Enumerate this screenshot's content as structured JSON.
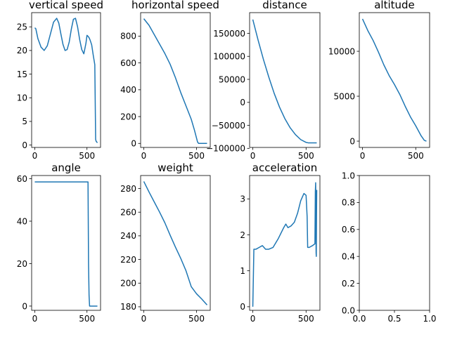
{
  "line_color": "#1f77b4",
  "chart_data": [
    {
      "type": "line",
      "title": "vertical speed",
      "xlim": [
        -30,
        630
      ],
      "ylim": [
        -0.5,
        28
      ],
      "xticks": [
        0,
        500
      ],
      "xtick_labels": [
        "0",
        "500"
      ],
      "yticks": [
        0,
        5,
        10,
        15,
        20,
        25
      ],
      "ytick_labels": [
        "0",
        "5",
        "10",
        "15",
        "20",
        "25"
      ],
      "x": [
        0,
        10,
        30,
        60,
        90,
        120,
        150,
        180,
        210,
        230,
        250,
        270,
        290,
        310,
        330,
        350,
        370,
        390,
        410,
        430,
        450,
        470,
        490,
        500,
        510,
        520,
        530,
        545,
        560,
        575,
        583,
        588,
        595,
        600
      ],
      "y": [
        24.8,
        24.6,
        22.5,
        20.7,
        20.0,
        21.0,
        23.5,
        26.0,
        26.8,
        25.8,
        23.5,
        21.3,
        20.0,
        20.2,
        21.8,
        24.5,
        26.6,
        26.8,
        25.0,
        22.3,
        20.2,
        19.3,
        21.5,
        23.2,
        23.0,
        22.7,
        22.2,
        21.2,
        19.0,
        17.0,
        1.2,
        0.8,
        0.6,
        0.5
      ]
    },
    {
      "type": "line",
      "title": "horizontal speed",
      "xlim": [
        -30,
        630
      ],
      "ylim": [
        -30,
        975
      ],
      "xticks": [
        0,
        500
      ],
      "xtick_labels": [
        "0",
        "500"
      ],
      "yticks": [
        0,
        200,
        400,
        600,
        800
      ],
      "ytick_labels": [
        "0",
        "200",
        "400",
        "600",
        "800"
      ],
      "x": [
        0,
        50,
        100,
        150,
        200,
        250,
        300,
        350,
        400,
        450,
        480,
        500,
        510,
        520,
        540,
        570,
        600
      ],
      "y": [
        930,
        880,
        810,
        740,
        670,
        590,
        490,
        380,
        280,
        180,
        100,
        40,
        10,
        0,
        0,
        0,
        0
      ]
    },
    {
      "type": "line",
      "title": "distance",
      "xlim": [
        -30,
        630
      ],
      "ylim": [
        -98000,
        195000
      ],
      "xticks": [
        0,
        500
      ],
      "xtick_labels": [
        "0",
        "500"
      ],
      "yticks": [
        150000,
        100000,
        50000,
        0,
        -50000,
        -100000
      ],
      "ytick_labels": [
        "150000",
        "100000",
        "50000",
        "0",
        "−50000",
        "−100000"
      ],
      "x": [
        0,
        50,
        100,
        150,
        200,
        250,
        300,
        350,
        400,
        450,
        500,
        520,
        560,
        600
      ],
      "y": [
        180000,
        135000,
        93000,
        55000,
        20000,
        -10000,
        -35000,
        -55000,
        -70000,
        -81000,
        -87000,
        -88000,
        -88000,
        -88000
      ]
    },
    {
      "type": "line",
      "title": "altitude",
      "xlim": [
        -30,
        630
      ],
      "ylim": [
        -700,
        14300
      ],
      "xticks": [
        0,
        500
      ],
      "xtick_labels": [
        "0",
        "500"
      ],
      "yticks": [
        0,
        5000,
        10000
      ],
      "ytick_labels": [
        "0",
        "5000",
        "10000"
      ],
      "x": [
        0,
        50,
        100,
        150,
        200,
        250,
        300,
        350,
        400,
        450,
        500,
        550,
        580,
        600
      ],
      "y": [
        13600,
        12300,
        11200,
        9900,
        8500,
        7300,
        6300,
        5200,
        3900,
        2700,
        1700,
        600,
        100,
        0
      ]
    },
    {
      "type": "line",
      "title": "angle",
      "xlim": [
        -30,
        630
      ],
      "ylim": [
        -2,
        61.5
      ],
      "xticks": [
        0,
        500
      ],
      "xtick_labels": [
        "0",
        "500"
      ],
      "yticks": [
        0,
        20,
        40,
        60
      ],
      "ytick_labels": [
        "0",
        "20",
        "40",
        "60"
      ],
      "x": [
        0,
        100,
        200,
        300,
        400,
        510,
        515,
        520,
        525,
        540,
        570,
        600
      ],
      "y": [
        58.5,
        58.5,
        58.5,
        58.5,
        58.5,
        58.5,
        20,
        5,
        0,
        0,
        0,
        0
      ]
    },
    {
      "type": "line",
      "title": "weight",
      "xlim": [
        -30,
        630
      ],
      "ylim": [
        177,
        291
      ],
      "xticks": [
        0,
        500
      ],
      "xtick_labels": [
        "0",
        "500"
      ],
      "yticks": [
        180,
        200,
        220,
        240,
        260,
        280
      ],
      "ytick_labels": [
        "180",
        "200",
        "220",
        "240",
        "260",
        "280"
      ],
      "x": [
        0,
        50,
        100,
        150,
        200,
        250,
        300,
        350,
        400,
        450,
        500,
        550,
        600
      ],
      "y": [
        286,
        277,
        268.5,
        260,
        251,
        240.5,
        230.5,
        221,
        210.5,
        197,
        191,
        186.5,
        181.5
      ]
    },
    {
      "type": "line",
      "title": "acceleration",
      "xlim": [
        -30,
        630
      ],
      "ylim": [
        -0.1,
        3.65
      ],
      "xticks": [
        0,
        500
      ],
      "xtick_labels": [
        "0",
        "500"
      ],
      "yticks": [
        0,
        1,
        2,
        3
      ],
      "ytick_labels": [
        "0",
        "1",
        "2",
        "3"
      ],
      "x": [
        0,
        10,
        30,
        60,
        90,
        120,
        150,
        190,
        240,
        290,
        310,
        330,
        360,
        390,
        420,
        450,
        480,
        500,
        510,
        515,
        530,
        560,
        583,
        587,
        590,
        592,
        594,
        596,
        598,
        600
      ],
      "y": [
        0,
        1.6,
        1.6,
        1.65,
        1.7,
        1.6,
        1.6,
        1.65,
        1.9,
        2.2,
        2.3,
        2.2,
        2.25,
        2.35,
        2.6,
        2.95,
        3.15,
        3.1,
        2.5,
        1.65,
        1.65,
        1.7,
        1.75,
        3.2,
        3.45,
        2.8,
        1.5,
        1.4,
        2.5,
        3.25
      ]
    },
    {
      "type": "line",
      "title": "",
      "xlim": [
        0,
        1
      ],
      "ylim": [
        0,
        1
      ],
      "xticks": [
        0,
        0.5,
        1
      ],
      "xtick_labels": [
        "0.0",
        "0.5",
        "1.0"
      ],
      "yticks": [
        0,
        0.2,
        0.4,
        0.6,
        0.8,
        1.0
      ],
      "ytick_labels": [
        "0.0",
        "0.2",
        "0.4",
        "0.6",
        "0.8",
        "1.0"
      ],
      "x": [],
      "y": []
    }
  ]
}
